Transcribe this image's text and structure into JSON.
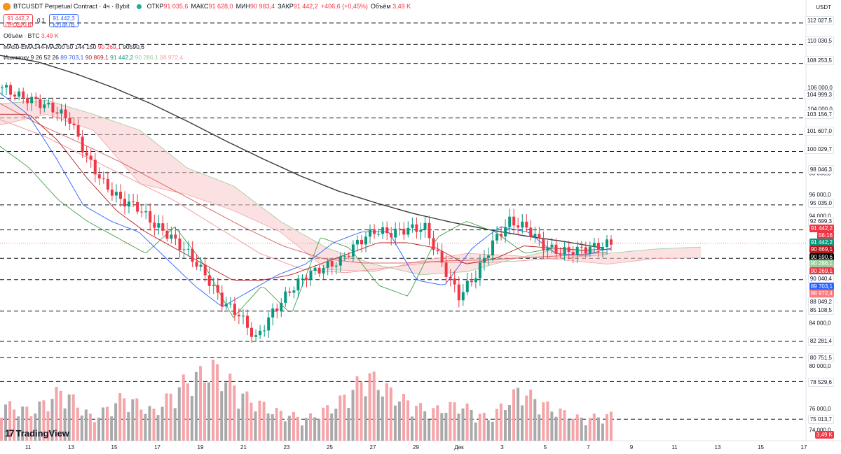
{
  "header": {
    "symbol": "BTCUSDT Perpetual Contract · 4ч · Bybit",
    "o_label": "ОТКР",
    "o_value": "91 035,6",
    "h_label": "МАКС",
    "h_value": "91 628,0",
    "l_label": "МИН",
    "l_value": "90 983,4",
    "c_label": "ЗАКР",
    "c_value": "91 442,2",
    "change": "+406,6 (+0,45%)",
    "vol_label": "Объём",
    "vol_value": "3,49 K"
  },
  "trade": {
    "sell_price": "91 442,2",
    "sell_label": "ПРОДАТЬ",
    "spread": "0,1",
    "buy_price": "91 442,3",
    "buy_label": "КУПИТЬ"
  },
  "indicators": {
    "volume_label": "Объём · BTC",
    "volume_value": "3,49 K",
    "ma_label": "MA50-EMA144-MA200 50 144 150",
    "ma_v1": "90 269,1",
    "ma_v2": "90590,6",
    "ichi_label": "Ишимоку 9 26 52 26",
    "ichi_v1": "89 703,1",
    "ichi_v2": "90 869,1",
    "ichi_v3": "91 442,2",
    "ichi_v4": "90 286,1",
    "ichi_v5": "88 972,4"
  },
  "axis": {
    "currency": "USDT",
    "y_ticks": [
      "106 000,0",
      "104 000,0",
      "102 000,0",
      "98 000,0",
      "96 000,0",
      "94 000,0",
      "84 000,0",
      "80 000,0",
      "76 000,0",
      "74 000,0"
    ],
    "x_ticks": [
      "11",
      "13",
      "15",
      "17",
      "19",
      "21",
      "23",
      "25",
      "27",
      "29",
      "Дек",
      "3",
      "5",
      "7",
      "9",
      "11",
      "13",
      "15",
      "17"
    ]
  },
  "price_labels": [
    {
      "text": "112 027,5",
      "color": "#131722"
    },
    {
      "text": "110 030,5",
      "color": "#131722"
    },
    {
      "text": "108 253,5",
      "color": "#131722"
    },
    {
      "text": "104 999,3",
      "color": "#131722"
    },
    {
      "text": "103 156,7",
      "color": "#131722"
    },
    {
      "text": "101 607,0",
      "color": "#131722"
    },
    {
      "text": "100 029,7",
      "color": "#131722"
    },
    {
      "text": "98 046,3",
      "color": "#131722"
    },
    {
      "text": "95 035,0",
      "color": "#131722"
    },
    {
      "text": "92 699,3",
      "color": "#131722"
    },
    {
      "text": "91 442,2",
      "color": "#f23645"
    },
    {
      "text": "56:16",
      "color": "#f23645"
    },
    {
      "text": "91 442,2",
      "color": "#089981"
    },
    {
      "text": "90 869,1",
      "color": "#b71c1c"
    },
    {
      "text": "90 590,6",
      "color": "#000000"
    },
    {
      "text": "90 286,1",
      "color": "#ffffff"
    },
    {
      "text": "90 269,1",
      "color": "#f23645"
    },
    {
      "text": "90 040,4",
      "color": "#131722"
    },
    {
      "text": "89 703,1",
      "color": "#2962ff"
    },
    {
      "text": "88 972,4",
      "color": "#f77c80"
    },
    {
      "text": "88 049,2",
      "color": "#131722"
    },
    {
      "text": "85 108,5",
      "color": "#131722"
    },
    {
      "text": "82 281,4",
      "color": "#131722"
    },
    {
      "text": "80 751,5",
      "color": "#131722"
    },
    {
      "text": "78 529,6",
      "color": "#131722"
    },
    {
      "text": "75 013,7",
      "color": "#131722"
    },
    {
      "text": "3,49 K",
      "color": "#f23645"
    }
  ],
  "branding": {
    "name": "TradingView"
  },
  "colors": {
    "up": "#089981",
    "down": "#f23645",
    "ma200": "#3a3a3a",
    "ema144": "#d96a6a",
    "ma50": "#f0a0a0",
    "tenkan": "#2962ff",
    "kijun": "#b71c1c",
    "chikou": "#43a047"
  },
  "chart_data": {
    "type": "candlestick",
    "symbol": "BTCUSDT",
    "interval": "4h",
    "last_price": 91442.2,
    "ylim": [
      73000,
      113000
    ],
    "horizontal_levels": [
      112027.5,
      110030.5,
      108253.5,
      104999.3,
      103156.7,
      101607.0,
      100029.7,
      98046.3,
      95035.0,
      92699.3,
      90040.4,
      88049.2,
      85108.5,
      82281.4,
      80751.5,
      78529.6,
      75013.7
    ],
    "x_dates": [
      "11",
      "13",
      "15",
      "17",
      "19",
      "21",
      "23",
      "25",
      "27",
      "29",
      "Дек",
      "3",
      "5",
      "7"
    ],
    "close_path": [
      106000,
      105200,
      104700,
      104000,
      103000,
      99500,
      97000,
      95500,
      94800,
      93200,
      92000,
      90500,
      88500,
      86000,
      84800,
      82500,
      85000,
      87000,
      88500,
      89200,
      89800,
      91500,
      92600,
      92400,
      92800,
      92900,
      89500,
      86500,
      88500,
      91500,
      93500,
      92900,
      91200,
      90600,
      90800,
      91100,
      91442.2
    ],
    "ma200_path": [
      109000,
      108400,
      107300,
      106000,
      104500,
      102800,
      101000,
      99300,
      97700,
      96300,
      95200,
      94200,
      93400,
      92700,
      92100,
      91600,
      91000
    ],
    "ema144_path": [
      104500,
      102500,
      100800,
      99000,
      97000,
      95000,
      93000,
      91200,
      90000,
      89600,
      89600,
      89800,
      89900,
      90100,
      90300,
      90600
    ],
    "ma50_path": [
      103000,
      101500,
      99500,
      97500,
      95500,
      93000,
      90500,
      89000,
      88700,
      89200,
      89700,
      89600,
      89800,
      90100,
      90400
    ],
    "tenkan_path": [
      105500,
      103500,
      99500,
      95000,
      93500,
      92500,
      90000,
      87500,
      85500,
      87000,
      88500,
      89500,
      91500,
      92500,
      92500,
      88000,
      87500,
      91000,
      93000,
      92500,
      90500,
      90300,
      91000
    ],
    "kijun_path": [
      103500,
      103500,
      101000,
      97500,
      94500,
      92500,
      91000,
      89500,
      88000,
      88000,
      88500,
      89500,
      90500,
      91500,
      91500,
      91000,
      89500,
      90000,
      91200,
      91000,
      90800,
      90900
    ],
    "chikou_path": [
      100500,
      98500,
      95500,
      93500,
      92000,
      90500,
      93000,
      89500,
      84500,
      87500,
      84800,
      92000,
      91000,
      87500,
      86500,
      92000,
      93500,
      92500,
      90500,
      91000
    ],
    "cloud_span_a": [
      104500,
      104800,
      103500,
      102000,
      98500,
      96800,
      93500,
      91000,
      89500,
      88500,
      88800,
      90000,
      91000,
      90500,
      90900,
      91100
    ],
    "cloud_span_b": [
      102500,
      103500,
      102000,
      97000,
      96000,
      94500,
      92500,
      89000,
      88800,
      89800,
      90500,
      90300,
      89900,
      89500,
      90000,
      90100
    ],
    "volume_path": [
      0.5,
      0.4,
      0.7,
      0.3,
      0.6,
      0.4,
      0.8,
      1.0,
      0.6,
      0.4,
      0.3,
      0.5,
      0.9,
      0.6,
      0.4,
      0.5,
      0.3,
      0.7,
      0.45,
      0.3,
      0.35
    ]
  }
}
